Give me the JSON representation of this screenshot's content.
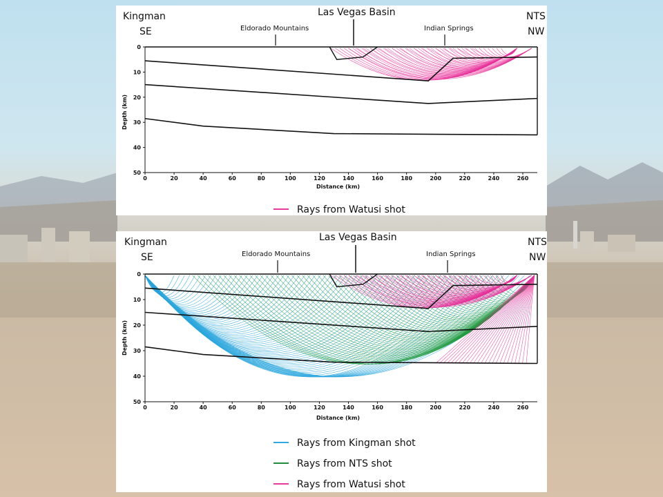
{
  "top_panel": {
    "corner_left": [
      "Kingman",
      "SE"
    ],
    "corner_right": [
      "NTS",
      "NW"
    ],
    "top_label": "Las Vegas Basin",
    "place_labels": [
      "Eldorado Mountains",
      "Indian Springs"
    ],
    "x_axis_title": "Distance (km)",
    "y_axis_title": "Depth (km)",
    "x_ticks": [
      "0",
      "20",
      "40",
      "60",
      "80",
      "100",
      "120",
      "140",
      "160",
      "180",
      "200",
      "220",
      "240",
      "260"
    ],
    "y_ticks": [
      "0",
      "10",
      "20",
      "30",
      "40",
      "50"
    ],
    "legend": [
      {
        "label": "Rays from Watusi shot",
        "color": "#e8389a"
      }
    ]
  },
  "bottom_panel": {
    "corner_left": [
      "Kingman",
      "SE"
    ],
    "corner_right": [
      "NTS",
      "NW"
    ],
    "top_label": "Las Vegas Basin",
    "place_labels": [
      "Eldorado Mountains",
      "Indian Springs"
    ],
    "x_axis_title": "Distance (km)",
    "y_axis_title": "Depth (km)",
    "x_ticks": [
      "0",
      "20",
      "40",
      "60",
      "80",
      "100",
      "120",
      "140",
      "160",
      "180",
      "200",
      "220",
      "240",
      "260"
    ],
    "y_ticks": [
      "0",
      "10",
      "20",
      "30",
      "40",
      "50"
    ],
    "legend": [
      {
        "label": "Rays from Kingman shot",
        "color": "#2fa8e0"
      },
      {
        "label": "Rays from NTS shot",
        "color": "#1f8a3a"
      },
      {
        "label": "Rays from Watusi shot",
        "color": "#e8389a"
      }
    ]
  },
  "colors": {
    "kingman": "#29a6dd",
    "nts": "#1f9a3c",
    "watusi": "#e8309a"
  }
}
